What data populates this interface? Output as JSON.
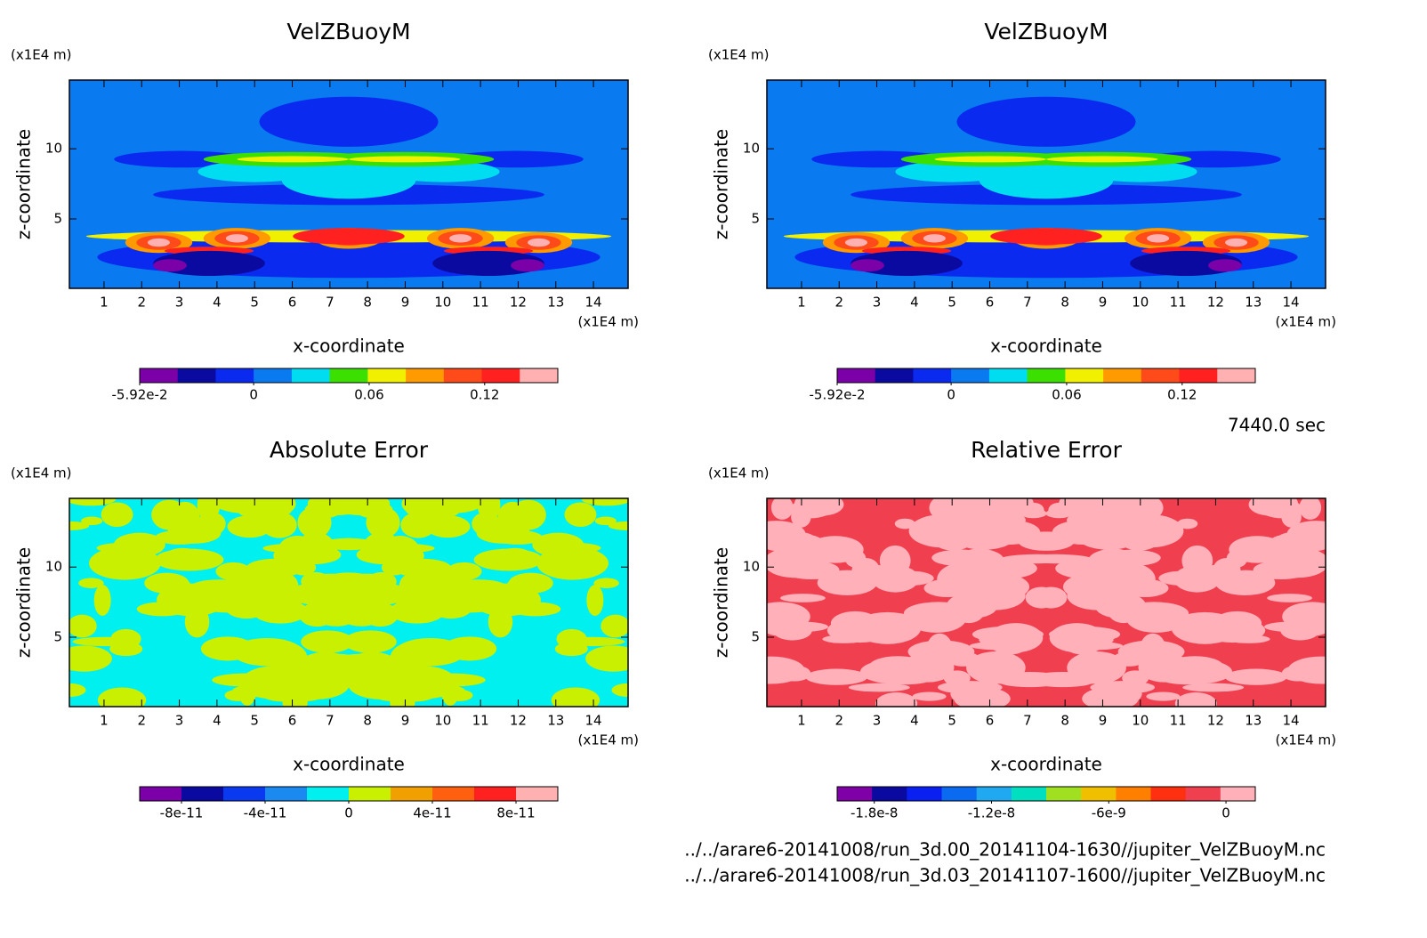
{
  "chart_data": [
    {
      "type": "contour",
      "title": "VelZBuoyM",
      "xlabel": "x-coordinate",
      "ylabel": "z-coordinate",
      "x_unit": "(x1E4 m)",
      "y_unit": "(x1E4 m)",
      "xlim": [
        0.08,
        14.92
      ],
      "ylim": [
        0.05,
        14.9
      ],
      "xticks": [
        1,
        2,
        3,
        4,
        5,
        6,
        7,
        8,
        9,
        10,
        11,
        12,
        13,
        14
      ],
      "yticks": [
        5,
        10
      ],
      "colorbar": {
        "colors": [
          "#7b00a8",
          "#0a0aa0",
          "#0a2af0",
          "#0a7af0",
          "#00dcf0",
          "#3ce000",
          "#f0f000",
          "#ff9a00",
          "#ff4a1a",
          "#ff2020",
          "#ffb0b0"
        ],
        "lim": [
          -0.0592,
          0.158
        ],
        "ticks": [
          {
            "value": -0.0592,
            "label": "-5.92e-2"
          },
          0,
          0.06,
          0.12
        ]
      }
    },
    {
      "type": "contour",
      "title": "VelZBuoyM",
      "xlabel": "x-coordinate",
      "ylabel": "z-coordinate",
      "x_unit": "(x1E4 m)",
      "y_unit": "(x1E4 m)",
      "xlim": [
        0.08,
        14.92
      ],
      "ylim": [
        0.05,
        14.9
      ],
      "xticks": [
        1,
        2,
        3,
        4,
        5,
        6,
        7,
        8,
        9,
        10,
        11,
        12,
        13,
        14
      ],
      "yticks": [
        5,
        10
      ],
      "colorbar": {
        "colors": [
          "#7b00a8",
          "#0a0aa0",
          "#0a2af0",
          "#0a7af0",
          "#00dcf0",
          "#3ce000",
          "#f0f000",
          "#ff9a00",
          "#ff4a1a",
          "#ff2020",
          "#ffb0b0"
        ],
        "lim": [
          -0.0592,
          0.158
        ],
        "ticks": [
          {
            "value": -0.0592,
            "label": "-5.92e-2"
          },
          0,
          0.06,
          0.12
        ]
      }
    },
    {
      "type": "contour",
      "title": "Absolute Error",
      "xlabel": "x-coordinate",
      "ylabel": "z-coordinate",
      "x_unit": "(x1E4 m)",
      "y_unit": "(x1E4 m)",
      "xlim": [
        0.08,
        14.92
      ],
      "ylim": [
        0.05,
        14.9
      ],
      "xticks": [
        1,
        2,
        3,
        4,
        5,
        6,
        7,
        8,
        9,
        10,
        11,
        12,
        13,
        14
      ],
      "yticks": [
        5,
        10
      ],
      "colorbar": {
        "colors": [
          "#7b00a8",
          "#0a0aa0",
          "#0a3af0",
          "#1a8af0",
          "#00f0f0",
          "#c8f000",
          "#f0a000",
          "#ff6010",
          "#ff2020",
          "#ffb0b0"
        ],
        "lim": [
          -1e-10,
          1e-10
        ],
        "ticks": [
          {
            "value": -8e-11,
            "label": "-8e-11"
          },
          {
            "value": -4e-11,
            "label": "-4e-11"
          },
          0,
          {
            "value": 4e-11,
            "label": "4e-11"
          },
          {
            "value": 8e-11,
            "label": "8e-11"
          }
        ]
      }
    },
    {
      "type": "contour",
      "title": "Relative Error",
      "xlabel": "x-coordinate",
      "ylabel": "z-coordinate",
      "x_unit": "(x1E4 m)",
      "y_unit": "(x1E4 m)",
      "xlim": [
        0.08,
        14.92
      ],
      "ylim": [
        0.05,
        14.9
      ],
      "xticks": [
        1,
        2,
        3,
        4,
        5,
        6,
        7,
        8,
        9,
        10,
        11,
        12,
        13,
        14
      ],
      "yticks": [
        5,
        10
      ],
      "colorbar": {
        "colors": [
          "#8000a8",
          "#0a0aa0",
          "#0a20f0",
          "#0a6af0",
          "#20a8f0",
          "#00e0c0",
          "#a0e020",
          "#f0c000",
          "#ff8000",
          "#ff3010",
          "#f04050",
          "#ffb0b8"
        ],
        "lim": [
          -1.99e-08,
          1.5e-09
        ],
        "ticks": [
          {
            "value": -1.8e-08,
            "label": "-1.8e-8"
          },
          {
            "value": -1.2e-08,
            "label": "-1.2e-8"
          },
          {
            "value": -6e-09,
            "label": "-6e-9"
          },
          0
        ]
      }
    }
  ],
  "time": "7440.0 sec",
  "files": [
    "../../arare6-20141008/run_3d.00_20141104-1630//jupiter_VelZBuoyM.nc",
    "../../arare6-20141008/run_3d.03_20141107-1600//jupiter_VelZBuoyM.nc"
  ]
}
